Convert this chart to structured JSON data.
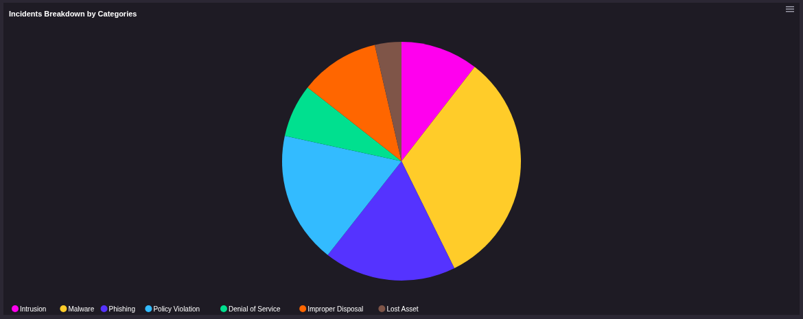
{
  "chart_data": {
    "type": "pie",
    "title": "Incidents Breakdown by Categories",
    "categories": [
      "Intrusion",
      "Malware",
      "Phishing",
      "Policy Violation",
      "Denial of Service",
      "Improper Disposal",
      "Lost Asset"
    ],
    "values": [
      10.5,
      32.2,
      17.9,
      17.8,
      7.2,
      10.8,
      3.6
    ],
    "colors": [
      "#ff00ee",
      "#ffcc29",
      "#5533ff",
      "#33bbff",
      "#00e08f",
      "#ff6600",
      "#7f5548"
    ],
    "legend": "bottom"
  }
}
